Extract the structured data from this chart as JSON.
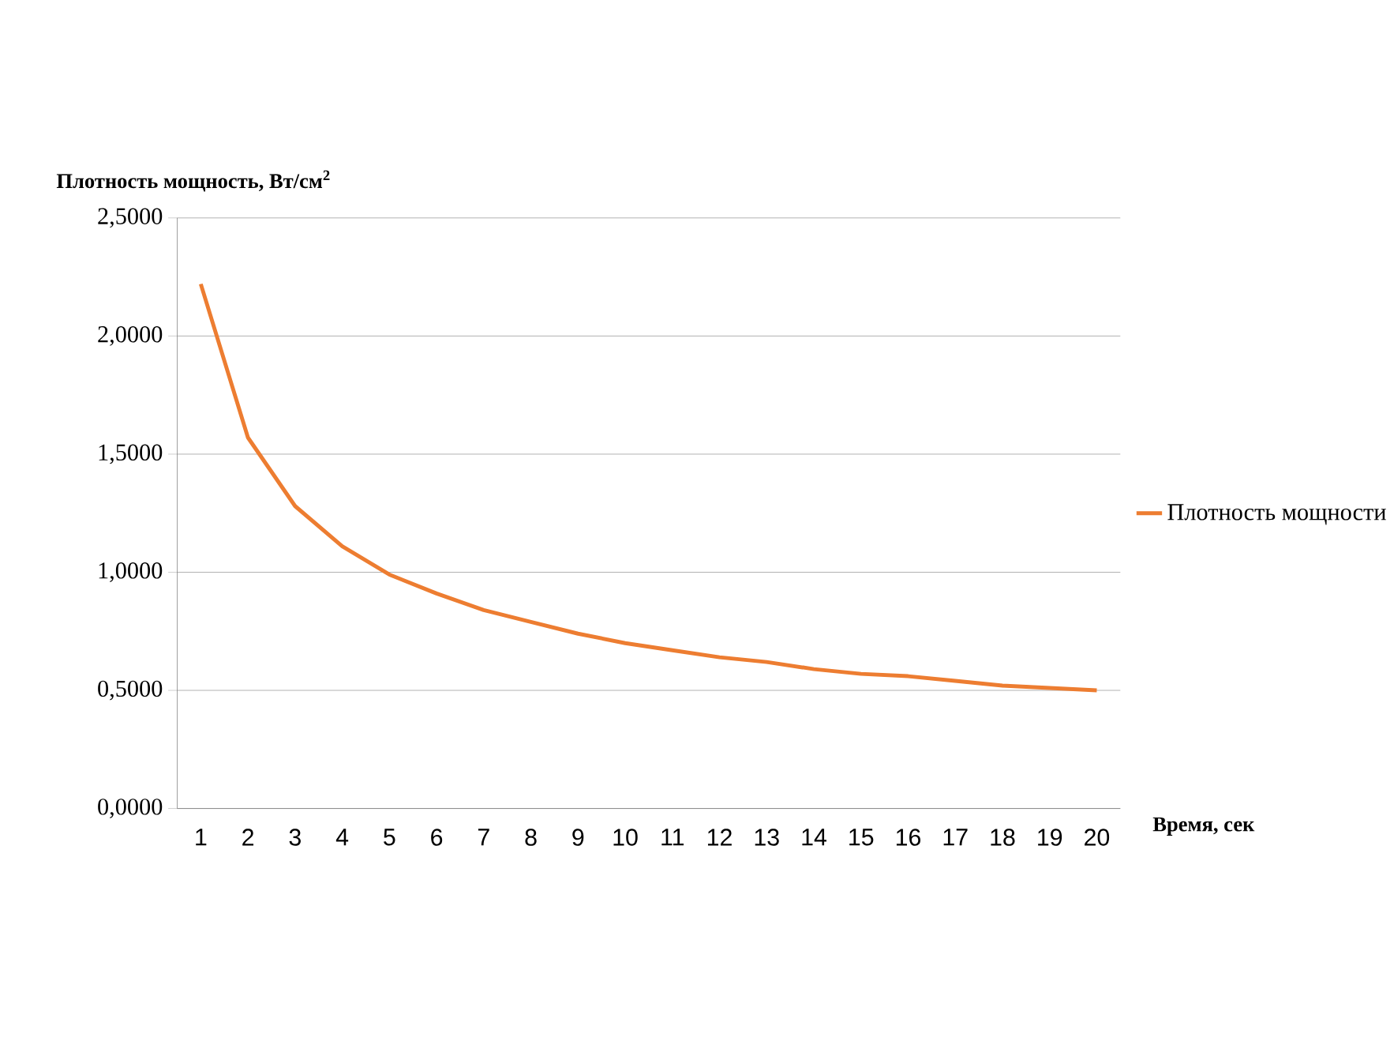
{
  "chart_data": {
    "type": "line",
    "xlabel": "Время, сек",
    "ylabel": "Плотность мощность, Вт/см$^{2}$",
    "categories": [
      "1",
      "2",
      "3",
      "4",
      "5",
      "6",
      "7",
      "8",
      "9",
      "10",
      "11",
      "12",
      "13",
      "14",
      "15",
      "16",
      "17",
      "18",
      "19",
      "20"
    ],
    "series": [
      {
        "name": "Плотность мощности",
        "color": "#ed7d31",
        "values": [
          2.22,
          1.57,
          1.28,
          1.11,
          0.99,
          0.91,
          0.84,
          0.79,
          0.74,
          0.7,
          0.67,
          0.64,
          0.62,
          0.59,
          0.57,
          0.56,
          0.54,
          0.52,
          0.51,
          0.5
        ]
      }
    ],
    "ylim": [
      0,
      2.5
    ],
    "yticks": [
      {
        "value": 0,
        "label": "0,0000"
      },
      {
        "value": 0.5,
        "label": "0,5000"
      },
      {
        "value": 1,
        "label": "1,0000"
      },
      {
        "value": 1.5,
        "label": "1,5000"
      },
      {
        "value": 2,
        "label": "2,0000"
      },
      {
        "value": 2.5,
        "label": "2,5000"
      }
    ],
    "grid": "y",
    "legend": "right",
    "marker": "none",
    "line_style": "solid"
  }
}
